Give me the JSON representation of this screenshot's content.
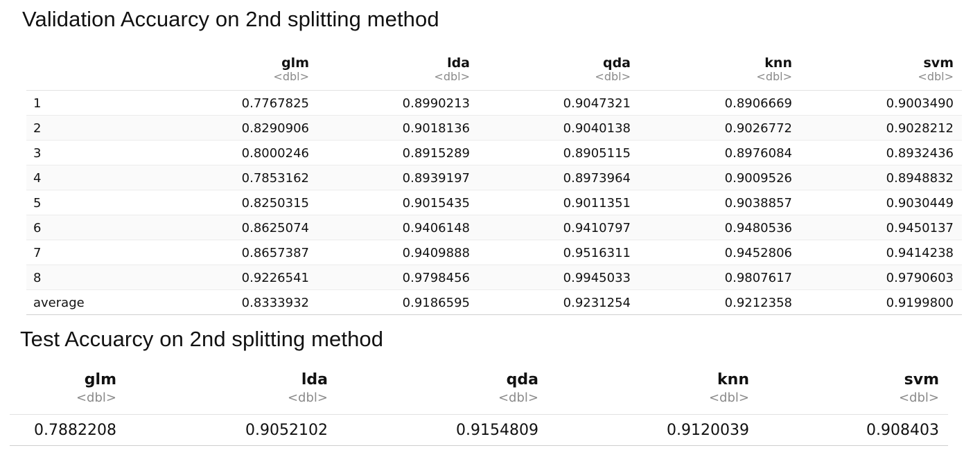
{
  "validation": {
    "title": "Validation Accuarcy on 2nd splitting method",
    "columns": [
      {
        "name": "glm",
        "type": "<dbl>"
      },
      {
        "name": "lda",
        "type": "<dbl>"
      },
      {
        "name": "qda",
        "type": "<dbl>"
      },
      {
        "name": "knn",
        "type": "<dbl>"
      },
      {
        "name": "svm",
        "type": "<dbl>"
      }
    ],
    "rows": [
      {
        "label": "1",
        "values": [
          "0.7767825",
          "0.8990213",
          "0.9047321",
          "0.8906669",
          "0.9003490"
        ]
      },
      {
        "label": "2",
        "values": [
          "0.8290906",
          "0.9018136",
          "0.9040138",
          "0.9026772",
          "0.9028212"
        ]
      },
      {
        "label": "3",
        "values": [
          "0.8000246",
          "0.8915289",
          "0.8905115",
          "0.8976084",
          "0.8932436"
        ]
      },
      {
        "label": "4",
        "values": [
          "0.7853162",
          "0.8939197",
          "0.8973964",
          "0.9009526",
          "0.8948832"
        ]
      },
      {
        "label": "5",
        "values": [
          "0.8250315",
          "0.9015435",
          "0.9011351",
          "0.9038857",
          "0.9030449"
        ]
      },
      {
        "label": "6",
        "values": [
          "0.8625074",
          "0.9406148",
          "0.9410797",
          "0.9480536",
          "0.9450137"
        ]
      },
      {
        "label": "7",
        "values": [
          "0.8657387",
          "0.9409888",
          "0.9516311",
          "0.9452806",
          "0.9414238"
        ]
      },
      {
        "label": "8",
        "values": [
          "0.9226541",
          "0.9798456",
          "0.9945033",
          "0.9807617",
          "0.9790603"
        ]
      },
      {
        "label": "average",
        "values": [
          "0.8333932",
          "0.9186595",
          "0.9231254",
          "0.9212358",
          "0.9199800"
        ]
      }
    ]
  },
  "test": {
    "title": "Test Accuarcy on 2nd splitting method",
    "columns": [
      {
        "name": "glm",
        "type": "<dbl>"
      },
      {
        "name": "lda",
        "type": "<dbl>"
      },
      {
        "name": "qda",
        "type": "<dbl>"
      },
      {
        "name": "knn",
        "type": "<dbl>"
      },
      {
        "name": "svm",
        "type": "<dbl>"
      }
    ],
    "values": [
      "0.7882208",
      "0.9052102",
      "0.9154809",
      "0.9120039",
      "0.908403"
    ]
  }
}
